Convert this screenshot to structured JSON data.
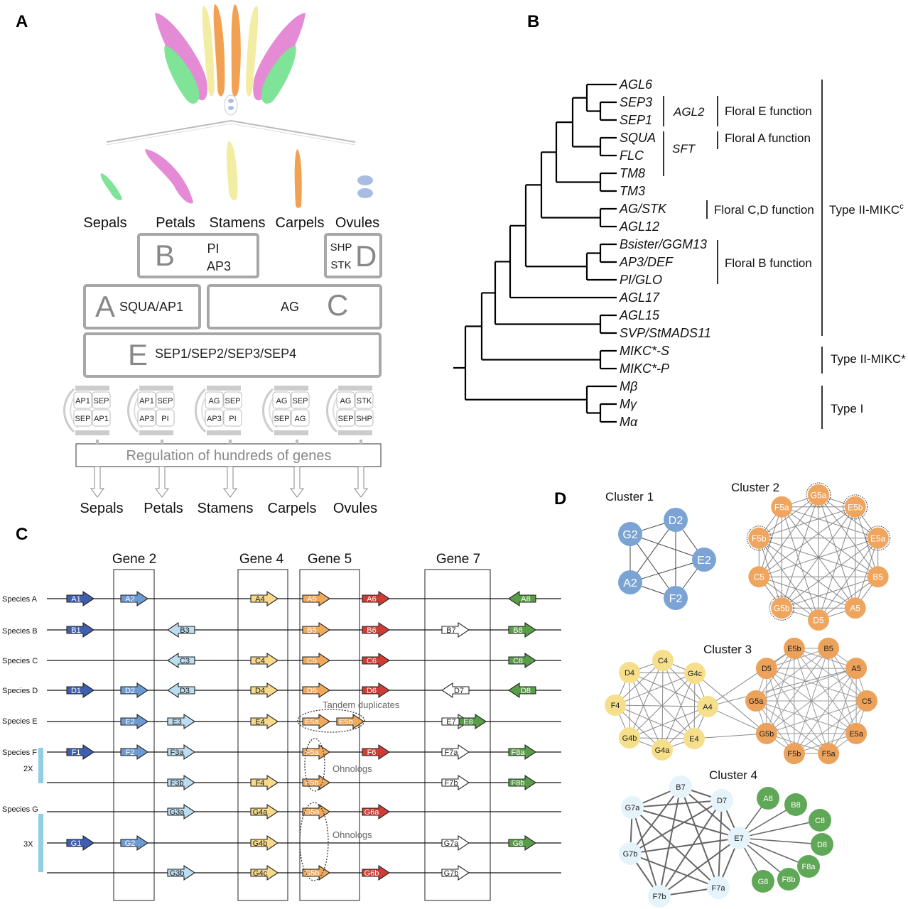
{
  "panelA": {
    "letter": "A",
    "organs_top": [
      "Sepals",
      "Petals",
      "Stamens",
      "Carpels",
      "Ovules"
    ],
    "organs_bottom": [
      "Sepals",
      "Petals",
      "Stamens",
      "Carpels",
      "Ovules"
    ],
    "boxB": {
      "letter": "B",
      "genes": [
        "PI",
        "AP3"
      ]
    },
    "boxD": {
      "letter": "D",
      "genes": [
        "SHP",
        "STK"
      ]
    },
    "boxA": {
      "letter": "A",
      "genes": "SQUA/AP1"
    },
    "boxC": {
      "letter": "C",
      "genes": "AG"
    },
    "boxE": {
      "letter": "E",
      "genes": "SEP1/SEP2/SEP3/SEP4"
    },
    "tetramers": [
      [
        "AP1",
        "SEP",
        "SEP",
        "AP1"
      ],
      [
        "AP1",
        "SEP",
        "AP3",
        "PI"
      ],
      [
        "AG",
        "SEP",
        "AP3",
        "PI"
      ],
      [
        "AG",
        "SEP",
        "SEP",
        "AG"
      ],
      [
        "AG",
        "STK",
        "SEP",
        "SHP"
      ]
    ],
    "regulation": "Regulation of hundreds of genes",
    "colors": {
      "pink": "#e58ad4",
      "green": "#7fe398",
      "yellow": "#f2eda3",
      "orange": "#eea35a",
      "ovule": "#a9bde3"
    }
  },
  "panelB": {
    "letter": "B",
    "taxa": [
      "AGL6",
      "SEP3",
      "SEP1",
      "SQUA",
      "FLC",
      "TM8",
      "TM3",
      "AG/STK",
      "AGL12",
      "Bsister/GGM13",
      "AP3/DEF",
      "PI/GLO",
      "AGL17",
      "AGL15",
      "SVP/StMADS11",
      "MIKC*-S",
      "MIKC*-P",
      "Mβ",
      "Mγ",
      "Mα"
    ],
    "subclades": [
      "AGL2",
      "SFT"
    ],
    "functions": [
      "Floral E function",
      "Floral A function",
      "Floral C,D function",
      "Floral B function"
    ],
    "types": [
      "Type II-MIKC",
      "c",
      "Type II-MIKC*",
      "Type I"
    ]
  },
  "panelC": {
    "letter": "C",
    "gene_headers": [
      "Gene 2",
      "Gene 4",
      "Gene 5",
      "Gene 7"
    ],
    "species": [
      "Species A",
      "Species B",
      "Species C",
      "Species D",
      "Species E",
      "Species F",
      "Species G"
    ],
    "ploidy": [
      "2X",
      "3X"
    ],
    "annotations": [
      "Tandem duplicates",
      "Ohnologs",
      "Ohnologs"
    ],
    "genes": [
      [
        "A1",
        "A2",
        "A4",
        "A5",
        "A6",
        "A8"
      ],
      [
        "B1",
        "B3",
        "B5",
        "B6",
        "B7",
        "B8"
      ],
      [
        "C3",
        "C4",
        "C5",
        "C6",
        "C8"
      ],
      [
        "D1",
        "D2",
        "D3",
        "D4",
        "D5",
        "D6",
        "D7",
        "D8"
      ],
      [
        "E2",
        "E3",
        "E4",
        "E5a",
        "E5b",
        "E7",
        "E8"
      ],
      [
        "F1",
        "F2",
        "F3a",
        "F5a",
        "F6",
        "F7a",
        "F8a"
      ],
      [
        "F3b",
        "F4",
        "F5b",
        "F7b",
        "F8b"
      ],
      [
        "G3a",
        "G4a",
        "G5a",
        "G6a"
      ],
      [
        "G1",
        "G2",
        "G4b",
        "G7a",
        "G8"
      ],
      [
        "G3b",
        "G4c",
        "G5b",
        "G6b",
        "G7b"
      ]
    ],
    "colors": {
      "g1": "#3f5fae",
      "g2": "#6c9ad1",
      "g3": "#bcdcf0",
      "g4": "#f7d98b",
      "g5": "#f0a95b",
      "g6": "#d03c35",
      "g7": "#ffffff",
      "g8": "#5a9d49",
      "bar": "#8fcde8"
    }
  },
  "panelD": {
    "letter": "D",
    "clusters": [
      {
        "title": "Cluster 1",
        "nodes": [
          "D2",
          "G2",
          "E2",
          "A2",
          "F2"
        ],
        "color": "#7ba4d4"
      },
      {
        "title": "Cluster 2",
        "nodes": [
          "G5a",
          "E5b",
          "E5a",
          "B5",
          "A5",
          "D5",
          "G5b",
          "C5",
          "F5b",
          "F5a"
        ],
        "color": "#f0a55f"
      },
      {
        "title": "Cluster 3",
        "nodes": [
          "C4",
          "D4",
          "G4c",
          "F4",
          "A4",
          "G4b",
          "G4a",
          "E4",
          "E5b",
          "B5",
          "D5",
          "A5",
          "G5a",
          "C5",
          "G5b",
          "E5a",
          "F5b",
          "F5a"
        ],
        "colors": [
          "#f6df8b",
          "#eda25b"
        ]
      },
      {
        "title": "Cluster 4",
        "nodes": [
          "B7",
          "G7a",
          "D7",
          "E7",
          "G7b",
          "F7b",
          "F7a",
          "A8",
          "B8",
          "C8",
          "D8",
          "F8a",
          "F8b",
          "G8"
        ],
        "colors": [
          "#e5f3fb",
          "#5fa857"
        ]
      }
    ]
  }
}
